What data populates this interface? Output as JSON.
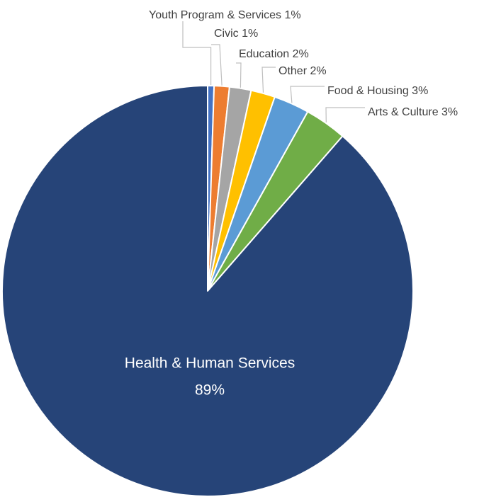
{
  "chart_data": {
    "type": "pie",
    "title": "",
    "slices": [
      {
        "label": "Youth Program & Services",
        "value": 0.5,
        "display": "1%",
        "color": "#4472c4"
      },
      {
        "label": "Civic",
        "value": 1.2,
        "display": "1%",
        "color": "#ed7d31"
      },
      {
        "label": "Education",
        "value": 1.7,
        "display": "2%",
        "color": "#a5a5a5"
      },
      {
        "label": "Other",
        "value": 1.9,
        "display": "2%",
        "color": "#ffc000"
      },
      {
        "label": "Food & Housing",
        "value": 2.8,
        "display": "3%",
        "color": "#5b9bd5"
      },
      {
        "label": "Arts & Culture",
        "value": 3.3,
        "display": "3%",
        "color": "#70ad47"
      },
      {
        "label": "Health & Human Services",
        "value": 88.6,
        "display": "89%",
        "color": "#264478"
      }
    ],
    "legend": "none",
    "data_labels": "category and percentage; small slices labeled outside with leader lines, largest slice labeled inside"
  }
}
